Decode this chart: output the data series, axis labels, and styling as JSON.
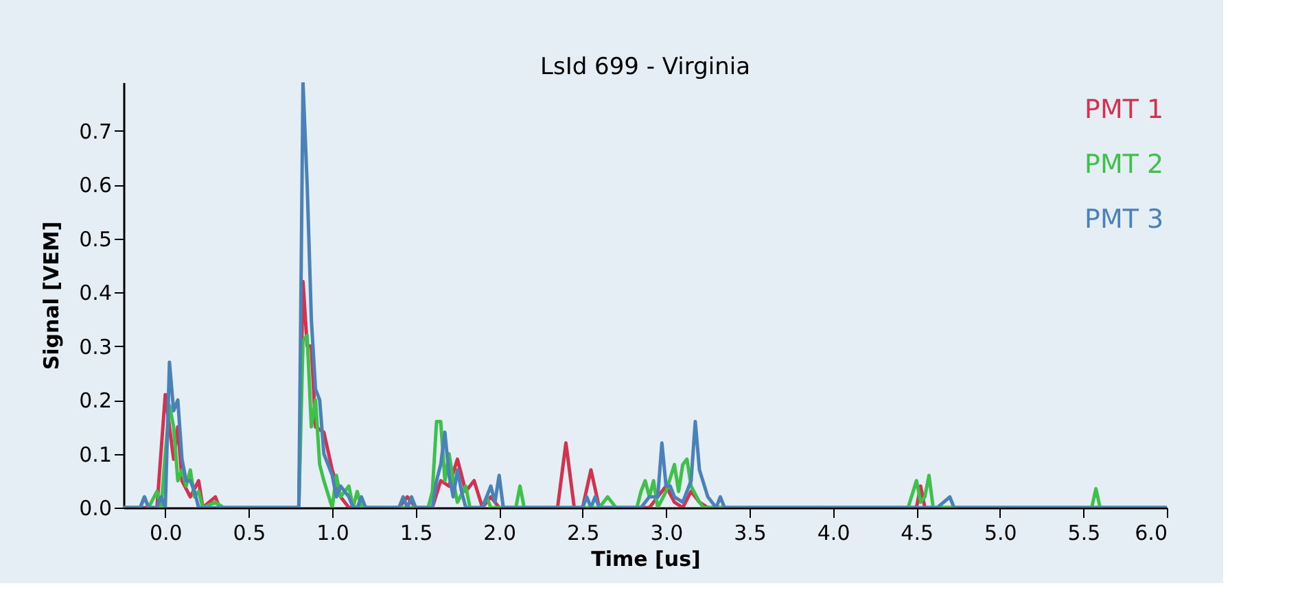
{
  "chart_data": {
    "type": "line",
    "title": "LsId 699 - Virginia",
    "xlabel": "Time [us]",
    "ylabel": "Signal [VEM]",
    "xlim": [
      -0.25,
      6.0
    ],
    "ylim": [
      0,
      0.79
    ],
    "xticks": [
      {
        "value": 0,
        "label": "0.0"
      },
      0.5,
      {
        "value": 1,
        "label": "1.0"
      },
      1.5,
      {
        "value": 2,
        "label": "2.0"
      },
      2.5,
      {
        "value": 3,
        "label": "3.0"
      },
      3.5,
      {
        "value": 4,
        "label": "4.0"
      },
      4.5,
      {
        "value": 5,
        "label": "5.0"
      },
      5.5,
      {
        "value": 6,
        "label": "6.0"
      }
    ],
    "yticks": [
      {
        "value": 0,
        "label": "0.0"
      },
      0.1,
      0.2,
      0.3,
      0.4,
      0.5,
      0.6,
      0.7
    ],
    "grid": false,
    "legend": "top right",
    "marker": "none",
    "line_style": "solid",
    "series": [
      {
        "name": "PMT 1",
        "color": "#d0324f",
        "x": [
          -0.25,
          -0.05,
          0.0,
          0.05,
          0.075,
          0.1,
          0.15,
          0.2,
          0.225,
          0.3,
          0.325,
          0.8,
          0.825,
          0.85,
          0.875,
          0.9,
          0.95,
          1.0,
          1.05,
          1.1,
          1.4,
          1.45,
          1.5,
          1.6,
          1.65,
          1.7,
          1.75,
          1.8,
          1.85,
          1.9,
          1.95,
          2.0,
          2.35,
          2.4,
          2.45,
          2.5,
          2.55,
          2.6,
          2.9,
          2.95,
          3.0,
          3.05,
          3.1,
          3.15,
          3.2,
          3.25,
          4.5,
          4.525,
          4.55,
          6.0
        ],
        "values": [
          0,
          0,
          0.21,
          0.09,
          0.15,
          0.05,
          0.02,
          0.05,
          0,
          0.02,
          0,
          0,
          0.42,
          0.3,
          0.3,
          0.15,
          0.14,
          0.07,
          0.02,
          0,
          0,
          0.02,
          0,
          0,
          0.05,
          0.04,
          0.09,
          0.03,
          0.05,
          0,
          0.02,
          0,
          0,
          0.12,
          0,
          0,
          0.07,
          0,
          0,
          0.02,
          0.04,
          0.01,
          0,
          0.03,
          0.01,
          0,
          0,
          0.04,
          0,
          0
        ]
      },
      {
        "name": "PMT 2",
        "color": "#3fc04a",
        "x": [
          -0.25,
          -0.15,
          -0.125,
          -0.1,
          -0.05,
          -0.025,
          0.0,
          0.025,
          0.05,
          0.075,
          0.1,
          0.125,
          0.15,
          0.175,
          0.2,
          0.225,
          0.3,
          0.35,
          0.8,
          0.825,
          0.85,
          0.875,
          0.9,
          0.925,
          0.95,
          1.0,
          1.025,
          1.05,
          1.1,
          1.125,
          1.15,
          1.175,
          1.575,
          1.6,
          1.625,
          1.65,
          1.675,
          1.7,
          1.725,
          1.75,
          1.8,
          1.825,
          1.9,
          1.925,
          1.95,
          2.1,
          2.125,
          2.15,
          2.6,
          2.65,
          2.7,
          2.825,
          2.85,
          2.875,
          2.9,
          2.925,
          2.95,
          3.0,
          3.05,
          3.075,
          3.1,
          3.125,
          3.15,
          3.2,
          3.225,
          4.45,
          4.5,
          4.525,
          4.55,
          4.575,
          4.6,
          5.55,
          5.575,
          5.6,
          6.0
        ],
        "values": [
          0,
          0,
          0.02,
          0,
          0.03,
          0,
          0.1,
          0.19,
          0.15,
          0.05,
          0.07,
          0.04,
          0.07,
          0.02,
          0.03,
          0,
          0.01,
          0,
          0,
          0.31,
          0.32,
          0.15,
          0.2,
          0.08,
          0.05,
          0,
          0.06,
          0.02,
          0.04,
          0,
          0.03,
          0,
          0,
          0.03,
          0.16,
          0.16,
          0.05,
          0.1,
          0.05,
          0.01,
          0.04,
          0,
          0,
          0.02,
          0,
          0,
          0.04,
          0,
          0,
          0.02,
          0,
          0,
          0.03,
          0.05,
          0.02,
          0.05,
          0,
          0.03,
          0.08,
          0.03,
          0.08,
          0.09,
          0.04,
          0.01,
          0,
          0,
          0.05,
          0.01,
          0.02,
          0.06,
          0,
          0,
          0.035,
          0,
          0
        ]
      },
      {
        "name": "PMT 3",
        "color": "#4a82b8",
        "x": [
          -0.25,
          -0.15,
          -0.125,
          -0.1,
          -0.05,
          -0.025,
          0.0,
          0.025,
          0.05,
          0.075,
          0.1,
          0.125,
          0.15,
          0.175,
          0.2,
          0.8,
          0.825,
          0.85,
          0.875,
          0.9,
          0.925,
          0.95,
          1.0,
          1.025,
          1.05,
          1.1,
          1.125,
          1.15,
          1.175,
          1.2,
          1.4,
          1.425,
          1.45,
          1.475,
          1.5,
          1.6,
          1.625,
          1.65,
          1.675,
          1.7,
          1.725,
          1.75,
          1.775,
          1.8,
          1.9,
          1.95,
          1.975,
          2.0,
          2.025,
          2.5,
          2.525,
          2.55,
          2.575,
          2.6,
          2.85,
          2.9,
          2.95,
          2.975,
          3.0,
          3.025,
          3.05,
          3.1,
          3.15,
          3.175,
          3.2,
          3.25,
          3.3,
          3.325,
          3.35,
          4.625,
          4.7,
          4.725,
          6.0
        ],
        "values": [
          0,
          0,
          0.02,
          0,
          0,
          0.02,
          0,
          0.27,
          0.18,
          0.2,
          0.09,
          0.05,
          0.05,
          0.03,
          0,
          0,
          0.79,
          0.6,
          0.35,
          0.22,
          0.2,
          0.1,
          0.06,
          0.02,
          0.04,
          0.02,
          0,
          0,
          0.02,
          0,
          0,
          0.02,
          0,
          0.02,
          0,
          0,
          0.05,
          0.08,
          0.14,
          0.06,
          0.02,
          0.07,
          0.03,
          0,
          0,
          0.04,
          0.01,
          0.06,
          0,
          0,
          0.02,
          0,
          0.02,
          0,
          0,
          0.02,
          0.02,
          0.12,
          0.04,
          0.04,
          0.02,
          0.01,
          0.05,
          0.16,
          0.07,
          0.02,
          0,
          0.02,
          0,
          0,
          0.02,
          0,
          0
        ]
      }
    ]
  }
}
